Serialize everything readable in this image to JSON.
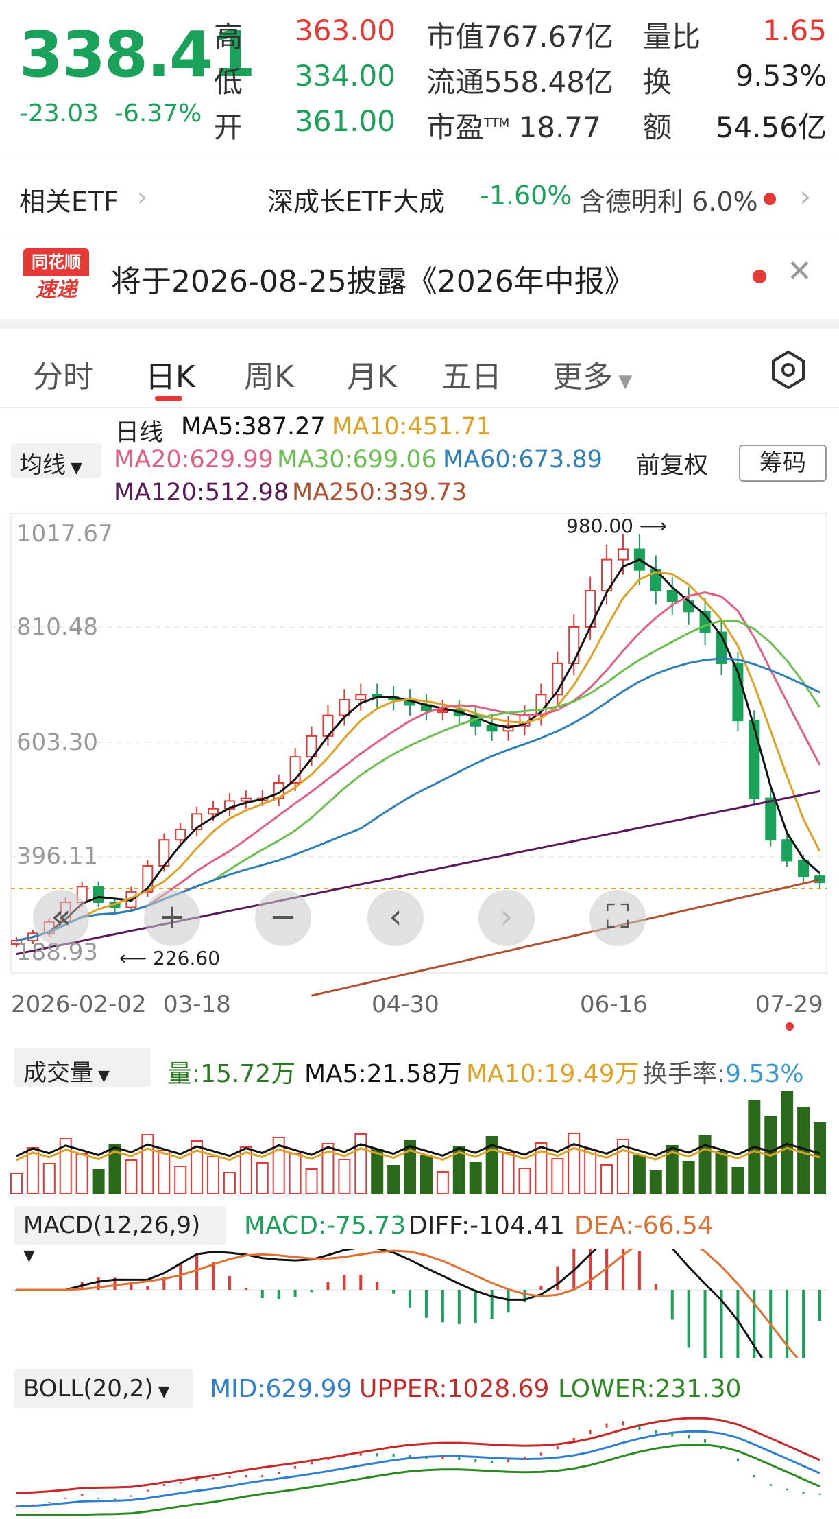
{
  "quote": {
    "price": "338.41",
    "change": "-23.03",
    "change_pct": "-6.37%",
    "rows": [
      {
        "l1": "高",
        "v1": "363.00",
        "l2": "市值",
        "v2": "767.67亿",
        "l3": "量比",
        "v3": "1.65"
      },
      {
        "l1": "低",
        "v1": "334.00",
        "l2": "流通",
        "v2": "558.48亿",
        "l3": "换",
        "v3": "9.53%"
      },
      {
        "l1": "开",
        "v1": "361.00",
        "l2": "市盈",
        "v2": "18.77",
        "l2sup": "TTM",
        "l3": "额",
        "v3": "54.56亿"
      }
    ]
  },
  "etf": {
    "label": "相关ETF",
    "name": "深成长ETF大成",
    "pct": "-1.60%",
    "holding": "含德明利 6.0%"
  },
  "notice": {
    "logo_top": "同花顺",
    "logo_bottom": "速递",
    "text": "将于2026-08-25披露《2026年中报》"
  },
  "tabs": [
    "分时",
    "日K",
    "周K",
    "月K",
    "五日",
    "更多"
  ],
  "active_tab": "日K",
  "ma": {
    "selector": "均线",
    "line_label": "日线",
    "ma5": "MA5:387.27",
    "ma10": "MA10:451.71",
    "ma20": "MA20:629.99",
    "ma30": "MA30:699.06",
    "ma60": "MA60:673.89",
    "ma120": "MA120:512.98",
    "ma250": "MA250:339.73",
    "adjust": "前复权",
    "chips": "筹码"
  },
  "colors": {
    "up": "#e53935",
    "down": "#1aa15a",
    "ma5": "#111111",
    "ma10": "#e0a020",
    "ma20": "#e06080",
    "ma30": "#6bbf50",
    "ma60": "#2f7fb8",
    "ma120": "#5a1a5a",
    "ma250": "#b05030"
  },
  "kline": {
    "y_labels": [
      "1017.67",
      "810.48",
      "603.30",
      "396.11",
      "188.93"
    ],
    "x_labels": [
      "2026-02-02",
      "03-18",
      "04-30",
      "06-16",
      "07-29"
    ],
    "high_marker": "980.00",
    "low_marker": "226.60"
  },
  "volume": {
    "selector": "成交量",
    "vol": "量:15.72万",
    "ma5": "MA5:21.58万",
    "ma10": "MA10:19.49万",
    "turnover_label": "换手率:",
    "turnover": "9.53%"
  },
  "macd": {
    "selector": "MACD(12,26,9)",
    "macd": "MACD:-75.73",
    "diff": "DIFF:-104.41",
    "dea": "DEA:-66.54"
  },
  "boll": {
    "selector": "BOLL(20,2)",
    "mid": "MID:629.99",
    "upper": "UPPER:1028.69",
    "lower": "LOWER:231.30"
  },
  "chart_data": {
    "type": "line",
    "y_axis_labels": [
      "1017.67",
      "810.48",
      "603.30",
      "396.11",
      "188.93"
    ],
    "x_axis_labels": [
      "2026-02-02",
      "03-18",
      "04-30",
      "06-16",
      "07-29"
    ],
    "close": [
      226,
      240,
      262,
      300,
      330,
      300,
      290,
      320,
      370,
      420,
      440,
      470,
      480,
      495,
      500,
      500,
      530,
      580,
      620,
      660,
      690,
      700,
      695,
      690,
      680,
      670,
      670,
      660,
      640,
      630,
      640,
      660,
      700,
      760,
      830,
      900,
      960,
      980,
      940,
      900,
      880,
      860,
      820,
      760,
      650,
      500,
      420,
      380,
      350,
      338
    ]
  }
}
